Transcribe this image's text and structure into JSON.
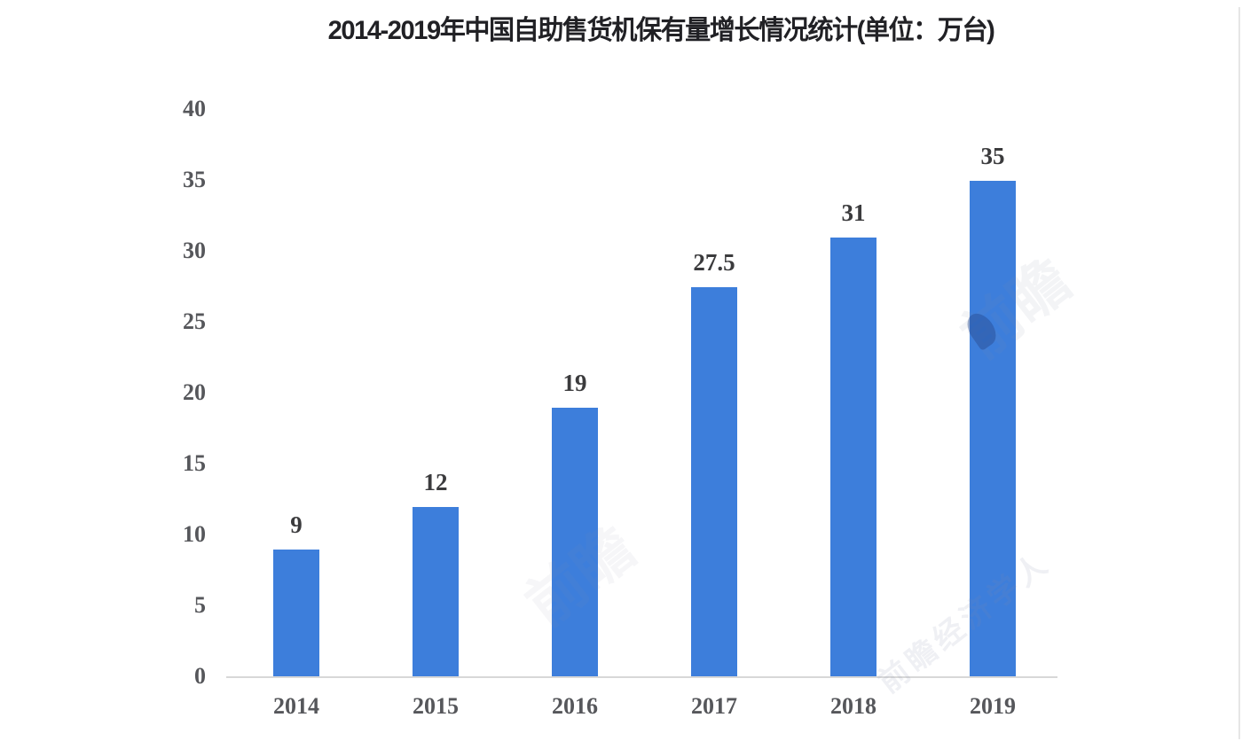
{
  "chart_data": {
    "type": "bar",
    "title": "2014-2019年中国自助售货机保有量增长情况统计(单位：万台)",
    "categories": [
      "2014",
      "2015",
      "2016",
      "2017",
      "2018",
      "2019"
    ],
    "values": [
      9,
      12,
      19,
      27.5,
      31,
      35
    ],
    "value_labels": [
      "9",
      "12",
      "19",
      "27.5",
      "31",
      "35"
    ],
    "xlabel": "",
    "ylabel": "",
    "ylim": [
      0,
      40
    ],
    "ytick_interval": 5,
    "yticks": [
      "40",
      "35",
      "30",
      "25",
      "20",
      "15",
      "10",
      "5",
      "0"
    ],
    "grid": false,
    "legend": false,
    "bar_color": "#3d7edb",
    "axis_line_color": "#d8d8d8",
    "tick_label_color": "#56575b",
    "value_label_color": "#3b3b3d",
    "title_color": "#212125"
  },
  "watermarks": [
    {
      "text": "前瞻"
    },
    {
      "text": "前瞻"
    },
    {
      "text": "前瞻经济学人"
    }
  ]
}
